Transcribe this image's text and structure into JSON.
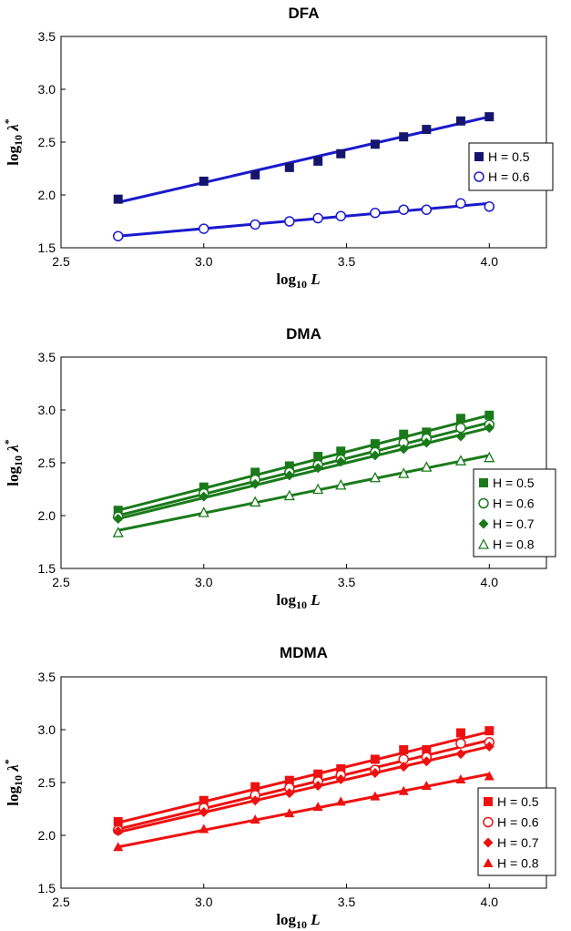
{
  "chart_data": [
    {
      "type": "scatter",
      "title": "DFA",
      "xlabel": {
        "main": "log",
        "sub": "10",
        "var": "L"
      },
      "ylabel": {
        "main": "log",
        "sub": "10",
        "var": "λ",
        "sup": "*"
      },
      "xlim": [
        2.5,
        4.2
      ],
      "ylim": [
        1.5,
        3.5
      ],
      "xticks": [
        2.5,
        3.0,
        3.5,
        4.0
      ],
      "yticks": [
        1.5,
        2.0,
        2.5,
        3.0,
        3.5
      ],
      "xtick_labels": [
        "2.5",
        "3.0",
        "3.5",
        "4.0"
      ],
      "ytick_labels": [
        "1.5",
        "2.0",
        "2.5",
        "3.0",
        "3.5"
      ],
      "color": "#1a1acc",
      "series": [
        {
          "name": "H = 0.5",
          "marker": "square-filled",
          "markerColor": "#15156e",
          "x": [
            2.7,
            3.0,
            3.18,
            3.3,
            3.4,
            3.48,
            3.6,
            3.7,
            3.78,
            3.9,
            4.0
          ],
          "y": [
            1.96,
            2.13,
            2.19,
            2.26,
            2.32,
            2.39,
            2.48,
            2.55,
            2.62,
            2.7,
            2.74
          ],
          "fit": [
            [
              2.7,
              1.93
            ],
            [
              4.0,
              2.74
            ]
          ]
        },
        {
          "name": "H = 0.6",
          "marker": "circle-open",
          "markerColor": "#1a1acc",
          "x": [
            2.7,
            3.0,
            3.18,
            3.3,
            3.4,
            3.48,
            3.6,
            3.7,
            3.78,
            3.9,
            4.0
          ],
          "y": [
            1.61,
            1.68,
            1.72,
            1.75,
            1.78,
            1.8,
            1.83,
            1.86,
            1.86,
            1.92,
            1.89
          ],
          "fit": [
            [
              2.7,
              1.61
            ],
            [
              4.0,
              1.92
            ]
          ]
        }
      ]
    },
    {
      "type": "scatter",
      "title": "DMA",
      "xlabel": {
        "main": "log",
        "sub": "10",
        "var": "L"
      },
      "ylabel": {
        "main": "log",
        "sub": "10",
        "var": "λ",
        "sup": "*"
      },
      "xlim": [
        2.5,
        4.2
      ],
      "ylim": [
        1.5,
        3.5
      ],
      "xticks": [
        2.5,
        3.0,
        3.5,
        4.0
      ],
      "yticks": [
        1.5,
        2.0,
        2.5,
        3.0,
        3.5
      ],
      "xtick_labels": [
        "2.5",
        "3.0",
        "3.5",
        "4.0"
      ],
      "ytick_labels": [
        "1.5",
        "2.0",
        "2.5",
        "3.0",
        "3.5"
      ],
      "color": "#1a7a1a",
      "series": [
        {
          "name": "H = 0.5",
          "marker": "square-filled",
          "markerColor": "#1a7a1a",
          "x": [
            2.7,
            3.0,
            3.18,
            3.3,
            3.4,
            3.48,
            3.6,
            3.7,
            3.78,
            3.9,
            4.0
          ],
          "y": [
            2.05,
            2.27,
            2.41,
            2.47,
            2.56,
            2.61,
            2.68,
            2.77,
            2.79,
            2.92,
            2.95
          ],
          "fit": [
            [
              2.7,
              2.05
            ],
            [
              4.0,
              2.95
            ]
          ]
        },
        {
          "name": "H = 0.6",
          "marker": "circle-open",
          "markerColor": "#1a7a1a",
          "x": [
            2.7,
            3.0,
            3.18,
            3.3,
            3.4,
            3.48,
            3.6,
            3.7,
            3.78,
            3.9,
            4.0
          ],
          "y": [
            1.99,
            2.21,
            2.34,
            2.41,
            2.48,
            2.53,
            2.6,
            2.69,
            2.73,
            2.83,
            2.86
          ],
          "fit": [
            [
              2.7,
              2.0
            ],
            [
              4.0,
              2.88
            ]
          ]
        },
        {
          "name": "H = 0.7",
          "marker": "diamond-filled",
          "markerColor": "#1a7a1a",
          "x": [
            2.7,
            3.0,
            3.18,
            3.3,
            3.4,
            3.48,
            3.6,
            3.7,
            3.78,
            3.9,
            4.0
          ],
          "y": [
            1.97,
            2.18,
            2.3,
            2.38,
            2.45,
            2.51,
            2.57,
            2.63,
            2.69,
            2.75,
            2.83
          ],
          "fit": [
            [
              2.7,
              1.97
            ],
            [
              4.0,
              2.83
            ]
          ]
        },
        {
          "name": "H = 0.8",
          "marker": "triangle-open",
          "markerColor": "#1a7a1a",
          "x": [
            2.7,
            3.0,
            3.18,
            3.3,
            3.4,
            3.48,
            3.6,
            3.7,
            3.78,
            3.9,
            4.0
          ],
          "y": [
            1.84,
            2.03,
            2.13,
            2.19,
            2.25,
            2.29,
            2.36,
            2.4,
            2.46,
            2.52,
            2.55
          ],
          "fit": [
            [
              2.7,
              1.86
            ],
            [
              4.0,
              2.57
            ]
          ]
        }
      ]
    },
    {
      "type": "scatter",
      "title": "MDMA",
      "xlabel": {
        "main": "log",
        "sub": "10",
        "var": "L"
      },
      "ylabel": {
        "main": "log",
        "sub": "10",
        "var": "λ",
        "sup": "*"
      },
      "xlim": [
        2.5,
        4.2
      ],
      "ylim": [
        1.5,
        3.5
      ],
      "xticks": [
        2.5,
        3.0,
        3.5,
        4.0
      ],
      "yticks": [
        1.5,
        2.0,
        2.5,
        3.0,
        3.5
      ],
      "xtick_labels": [
        "2.5",
        "3.0",
        "3.5",
        "4.0"
      ],
      "ytick_labels": [
        "1.5",
        "2.0",
        "2.5",
        "3.0",
        "3.5"
      ],
      "color": "#ee1111",
      "series": [
        {
          "name": "H = 0.5",
          "marker": "square-filled",
          "markerColor": "#ee1111",
          "x": [
            2.7,
            3.0,
            3.18,
            3.3,
            3.4,
            3.48,
            3.6,
            3.7,
            3.78,
            3.9,
            4.0
          ],
          "y": [
            2.13,
            2.33,
            2.46,
            2.52,
            2.58,
            2.63,
            2.72,
            2.81,
            2.81,
            2.97,
            2.99
          ],
          "fit": [
            [
              2.7,
              2.12
            ],
            [
              4.0,
              2.98
            ]
          ]
        },
        {
          "name": "H = 0.6",
          "marker": "circle-open",
          "markerColor": "#ee1111",
          "x": [
            2.7,
            3.0,
            3.18,
            3.3,
            3.4,
            3.48,
            3.6,
            3.7,
            3.78,
            3.9,
            4.0
          ],
          "y": [
            2.05,
            2.26,
            2.38,
            2.45,
            2.51,
            2.57,
            2.62,
            2.72,
            2.74,
            2.87,
            2.88
          ],
          "fit": [
            [
              2.7,
              2.06
            ],
            [
              4.0,
              2.9
            ]
          ]
        },
        {
          "name": "H = 0.7",
          "marker": "diamond-filled",
          "markerColor": "#ee1111",
          "x": [
            2.7,
            3.0,
            3.18,
            3.3,
            3.4,
            3.48,
            3.6,
            3.7,
            3.78,
            3.9,
            4.0
          ],
          "y": [
            2.04,
            2.22,
            2.33,
            2.4,
            2.47,
            2.53,
            2.59,
            2.65,
            2.7,
            2.77,
            2.84
          ],
          "fit": [
            [
              2.7,
              2.03
            ],
            [
              4.0,
              2.84
            ]
          ]
        },
        {
          "name": "H = 0.8",
          "marker": "triangle-filled",
          "markerColor": "#ee1111",
          "x": [
            2.7,
            3.0,
            3.18,
            3.3,
            3.4,
            3.48,
            3.6,
            3.7,
            3.78,
            3.9,
            4.0
          ],
          "y": [
            1.89,
            2.06,
            2.15,
            2.21,
            2.27,
            2.32,
            2.37,
            2.42,
            2.47,
            2.53,
            2.56
          ],
          "fit": [
            [
              2.7,
              1.89
            ],
            [
              4.0,
              2.58
            ]
          ]
        }
      ]
    }
  ]
}
